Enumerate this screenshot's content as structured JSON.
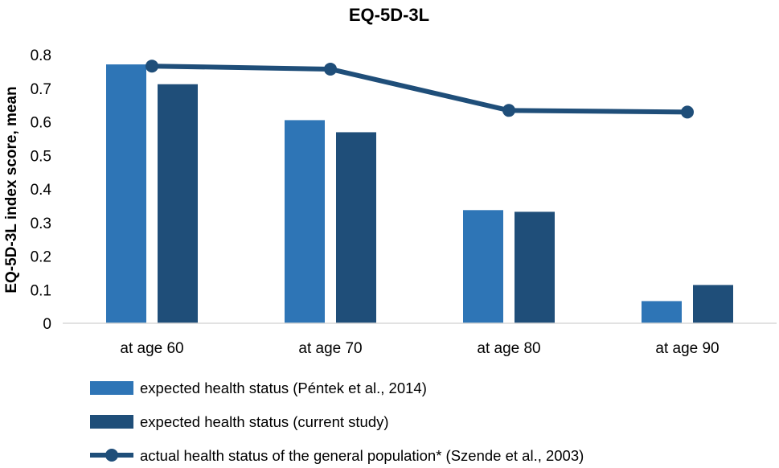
{
  "chart_data": {
    "type": "bar",
    "title": "EQ-5D-3L",
    "xlabel": "",
    "ylabel": "EQ-5D-3L index score, mean",
    "ylim": [
      0,
      0.8
    ],
    "yticks": [
      "0",
      "0.1",
      "0.2",
      "0.3",
      "0.4",
      "0.5",
      "0.6",
      "0.7",
      "0.8"
    ],
    "grid": false,
    "legend_position": "bottom",
    "categories": [
      "at age 60",
      "at age 70",
      "at age 80",
      "at age 90"
    ],
    "series": [
      {
        "name": "expected health status (Péntek et al., 2014)",
        "kind": "bar",
        "color": "#2e75b6",
        "values": [
          0.771,
          0.605,
          0.337,
          0.066
        ]
      },
      {
        "name": "expected health status (current study)",
        "kind": "bar",
        "color": "#1f4e79",
        "values": [
          0.712,
          0.569,
          0.332,
          0.114
        ]
      },
      {
        "name": "actual health status of the general population* (Szende et al., 2003)",
        "kind": "line",
        "color": "#1f4e79",
        "values": [
          0.766,
          0.757,
          0.634,
          0.629
        ]
      }
    ]
  }
}
